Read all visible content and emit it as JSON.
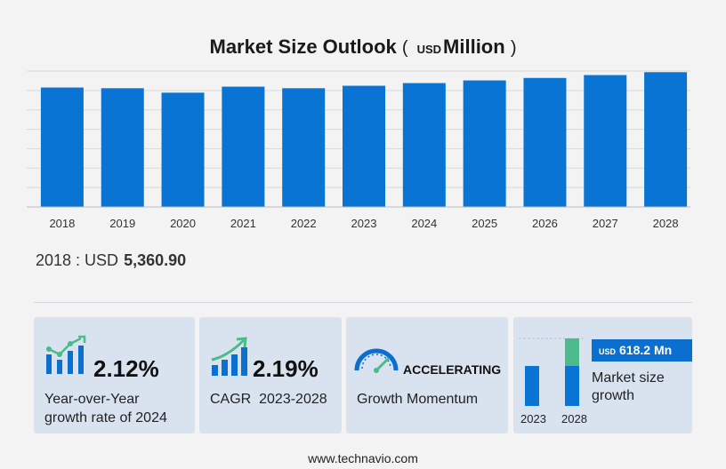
{
  "title": {
    "main": "Market Size Outlook",
    "unit_prefix": "USD",
    "unit": "Million",
    "open": "(",
    "close": ")"
  },
  "chart_data": {
    "type": "bar",
    "categories": [
      "2018",
      "2019",
      "2020",
      "2021",
      "2022",
      "2023",
      "2024",
      "2025",
      "2026",
      "2027",
      "2028"
    ],
    "values": [
      5360.9,
      5330,
      5130,
      5400,
      5330,
      5440,
      5560,
      5680,
      5790,
      5920,
      6050
    ],
    "ylim": [
      0,
      6100
    ],
    "grid": true,
    "color": "#0a74d4",
    "xlabel": "",
    "ylabel": ""
  },
  "baseline": {
    "label": "2018 : USD",
    "value": "5,360.90"
  },
  "cards": {
    "yoy": {
      "value": "2.12%",
      "line1": "Year-over-Year",
      "line2": "growth rate of 2024",
      "icon": "bar-growth-icon"
    },
    "cagr": {
      "value": "2.19%",
      "line1": "CAGR  2023-2028",
      "icon": "rising-bars-icon"
    },
    "momentum": {
      "value": "ACCELERATING",
      "line1": "Growth Momentum",
      "icon": "speedometer-icon"
    },
    "market": {
      "badge_unit": "USD",
      "badge_value": "618.2 Mn",
      "line1": "Market size",
      "line2": "growth",
      "year_a": "2023",
      "year_b": "2028",
      "color_base": "#0a74d4",
      "color_growth": "#4cba8a"
    }
  },
  "footer": "www.technavio.com"
}
